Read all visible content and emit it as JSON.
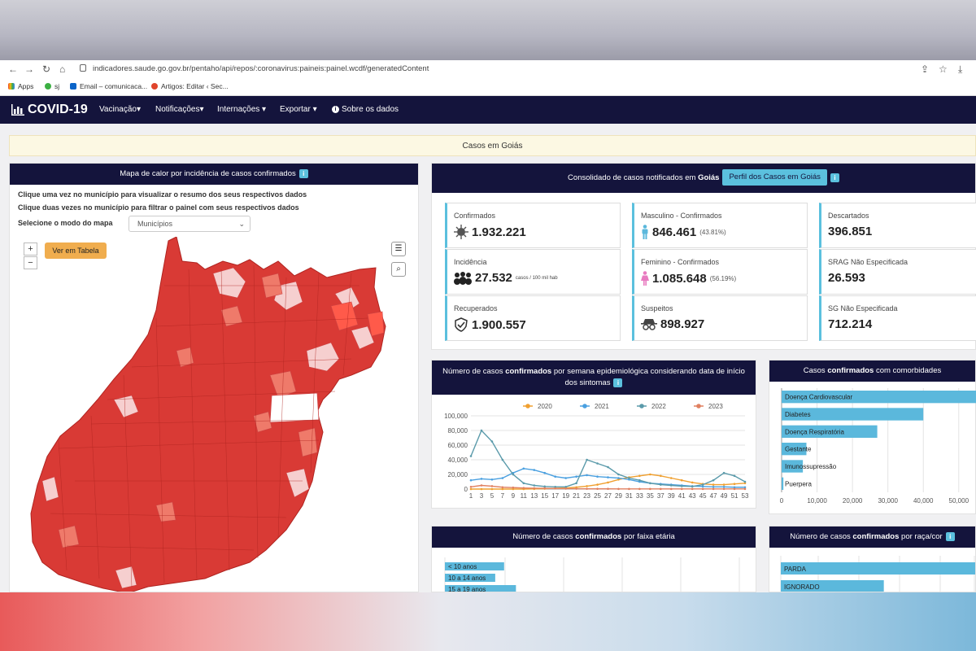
{
  "browser": {
    "url": "indicadores.saude.go.gov.br/pentaho/api/repos/:coronavirus:paineis:painel.wcdf/generatedContent",
    "bookmarks": [
      "Apps",
      "sj",
      "Email – comunicaca...",
      "Artigos: Editar ‹ Sec..."
    ]
  },
  "app": {
    "brand": "COVID-19",
    "menu": [
      "Vacinação▾",
      "Notificações▾",
      "Internações ▾",
      "Exportar ▾",
      "Sobre os dados"
    ]
  },
  "banner": "Casos em Goiás",
  "map_panel": {
    "title": "Mapa de calor por incidência de casos confirmados",
    "note1": "Clique uma vez no município para visualizar o resumo dos seus respectivos dados",
    "note2": "Clique duas vezes no município para filtrar o painel com seus respectivos dados",
    "mode_label": "Selecione o modo do mapa",
    "mode_value": "Municípios",
    "zoom_in": "+",
    "zoom_out": "−",
    "table_button": "Ver em Tabela"
  },
  "summary": {
    "title_prefix": "Consolidado de casos notificados em",
    "title_place": "Goiás",
    "profile_button": "Perfil dos Casos em Goiás",
    "cards": [
      {
        "label": "Confirmados",
        "value": "1.932.221",
        "icon": "virus-icon"
      },
      {
        "label": "Masculino - Confirmados",
        "value": "846.461",
        "extra": "(43.81%)",
        "icon": "male-icon"
      },
      {
        "label": "Descartados",
        "value": "396.851"
      },
      {
        "label": "Incidência",
        "value": "27.532",
        "extra": "casos / 100 mil hab",
        "icon": "crowd-icon"
      },
      {
        "label": "Feminino - Confirmados",
        "value": "1.085.648",
        "extra": "(56.19%)",
        "icon": "female-icon"
      },
      {
        "label": "SRAG Não Especificada",
        "value": "26.593"
      },
      {
        "label": "Recuperados",
        "value": "1.900.557",
        "icon": "shield-check-icon"
      },
      {
        "label": "Suspeitos",
        "value": "898.927",
        "icon": "spy-icon"
      },
      {
        "label": "SG Não Especificada",
        "value": "712.214"
      }
    ]
  },
  "weekly_panel": {
    "title_a": "Número de casos ",
    "title_b": "confirmados",
    "title_c": " por semana epidemiológica considerando data de início dos sintomas"
  },
  "comorb_panel": {
    "title_a": "Casos ",
    "title_b": "confirmados",
    "title_c": " com comorbidades"
  },
  "age_panel": {
    "title_a": "Número de casos ",
    "title_b": "confirmados",
    "title_c": " por faixa etária"
  },
  "race_panel": {
    "title_a": "Número de casos ",
    "title_b": "confirmados",
    "title_c": " por raça/cor"
  },
  "chart_data": [
    {
      "type": "line",
      "legend_position": "top",
      "x": [
        1,
        3,
        5,
        7,
        9,
        11,
        13,
        15,
        17,
        19,
        21,
        23,
        25,
        27,
        29,
        31,
        33,
        35,
        37,
        39,
        41,
        43,
        45,
        47,
        49,
        51,
        53
      ],
      "x_ticks": [
        "1",
        "3",
        "5",
        "7",
        "9",
        "11",
        "13",
        "15",
        "17",
        "19",
        "21",
        "23",
        "25",
        "27",
        "29",
        "31",
        "33",
        "35",
        "37",
        "39",
        "41",
        "43",
        "45",
        "47",
        "49",
        "51",
        "53"
      ],
      "ylim": [
        0,
        100000
      ],
      "y_ticks": [
        "0",
        "20,000",
        "40,000",
        "60,000",
        "80,000",
        "100,000"
      ],
      "grid": true,
      "series": [
        {
          "name": "2020",
          "color": "#f0a030",
          "values": [
            0,
            0,
            0,
            0,
            0,
            0,
            200,
            500,
            1000,
            1500,
            2500,
            4000,
            6000,
            9000,
            13000,
            16000,
            18000,
            20000,
            18000,
            15000,
            12000,
            9000,
            7000,
            6000,
            6000,
            7000,
            8000
          ]
        },
        {
          "name": "2021",
          "color": "#4aa0e0",
          "values": [
            12000,
            14000,
            13000,
            15000,
            22000,
            28000,
            26000,
            22000,
            17000,
            15000,
            17000,
            19000,
            17000,
            16000,
            15000,
            13000,
            10000,
            8000,
            7000,
            6000,
            5000,
            4000,
            3500,
            3000,
            3000,
            2500,
            2500
          ]
        },
        {
          "name": "2022",
          "color": "#5a9aaa",
          "values": [
            45000,
            80000,
            65000,
            40000,
            20000,
            8000,
            5000,
            3500,
            3000,
            3000,
            8000,
            40000,
            35000,
            30000,
            20000,
            15000,
            12000,
            8000,
            6000,
            5000,
            4000,
            3500,
            6000,
            12000,
            22000,
            18000,
            10000
          ]
        },
        {
          "name": "2023",
          "color": "#e08060",
          "values": [
            3000,
            5000,
            4000,
            2500,
            2000,
            1500,
            1200,
            1000,
            800,
            600,
            500,
            400,
            300,
            300,
            200,
            200,
            200,
            200,
            200,
            200,
            200,
            200,
            200,
            200,
            200,
            200,
            200
          ]
        }
      ]
    },
    {
      "type": "bar",
      "orientation": "horizontal",
      "categories": [
        "Doença Cardiovascular",
        "Diabetes",
        "Doença Respiratória",
        "Gestante",
        "Imunossupressão",
        "Puerpera"
      ],
      "values": [
        55000,
        40000,
        27000,
        7000,
        6000,
        500
      ],
      "xlim": [
        0,
        55000
      ],
      "x_ticks": [
        "0",
        "10,000",
        "20,000",
        "30,000",
        "40,000",
        "50,000"
      ],
      "color": "#5bb8dc"
    },
    {
      "type": "bar",
      "orientation": "horizontal",
      "categories": [
        "< 10 anos",
        "10 a 14 anos",
        "15 a 19 anos"
      ],
      "values": [
        0.2,
        0.17,
        0.24
      ],
      "color": "#5bb8dc"
    },
    {
      "type": "bar",
      "orientation": "horizontal",
      "categories": [
        "PARDA",
        "IGNORADO"
      ],
      "values": [
        1.0,
        0.53
      ],
      "color": "#5bb8dc"
    }
  ]
}
